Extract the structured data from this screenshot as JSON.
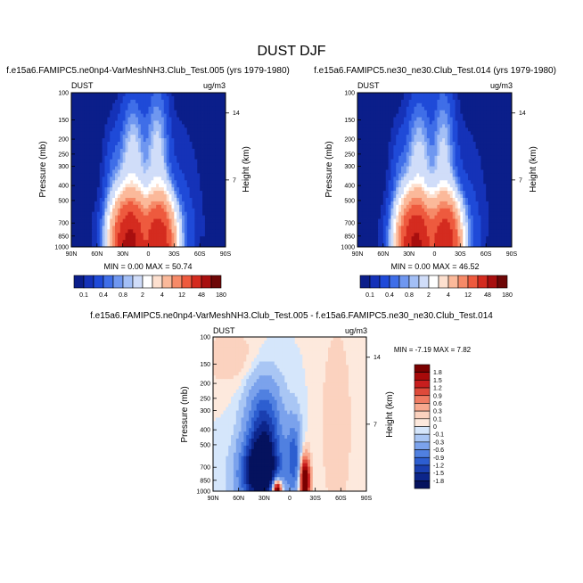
{
  "figure": {
    "title": "DUST DJF"
  },
  "chart_data": [
    {
      "type": "heatmap",
      "title": "f.e15a6.FAMIPC5.ne0np4-VarMeshNH3.Club_Test.005 (yrs 1979-1980)",
      "left_label": "DUST",
      "right_label": "ug/m3",
      "ylabel": "Pressure (mb)",
      "ylabel_right": "Height (km)",
      "x_ticks": [
        "90N",
        "60N",
        "30N",
        "0",
        "30S",
        "60S",
        "90S"
      ],
      "y_ticks": [
        "100",
        "150",
        "200",
        "250",
        "300",
        "400",
        "500",
        "700",
        "850",
        "1000"
      ],
      "y_ticks_right": [
        "14",
        "7"
      ],
      "xlim": [
        90,
        -90
      ],
      "ylim": [
        1000,
        100
      ],
      "stats": "MIN =  0.00  MAX = 50.74",
      "colorbar": {
        "labels": [
          "0.1",
          "0.4",
          "0.8",
          "2",
          "4",
          "12",
          "48",
          "180"
        ],
        "colors": [
          "#0b1e8a",
          "#1532b8",
          "#1f4ad8",
          "#3f6ee8",
          "#6f97f0",
          "#a3bff6",
          "#d0ddf9",
          "#ffffff",
          "#fde0cf",
          "#fbb99a",
          "#f68a68",
          "#ee5a3e",
          "#d42b1f",
          "#a80f0f",
          "#6e0707"
        ]
      }
    },
    {
      "type": "heatmap",
      "title": "f.e15a6.FAMIPC5.ne30_ne30.Club_Test.014 (yrs 1979-1980)",
      "left_label": "DUST",
      "right_label": "ug/m3",
      "ylabel": "Pressure (mb)",
      "ylabel_right": "Height (km)",
      "x_ticks": [
        "90N",
        "60N",
        "30N",
        "0",
        "30S",
        "60S",
        "90S"
      ],
      "y_ticks": [
        "100",
        "150",
        "200",
        "250",
        "300",
        "400",
        "500",
        "700",
        "850",
        "1000"
      ],
      "y_ticks_right": [
        "14",
        "7"
      ],
      "xlim": [
        90,
        -90
      ],
      "ylim": [
        1000,
        100
      ],
      "stats": "MIN =  0.00  MAX = 46.52",
      "colorbar": {
        "labels": [
          "0.1",
          "0.4",
          "0.8",
          "2",
          "4",
          "12",
          "48",
          "180"
        ],
        "colors": [
          "#0b1e8a",
          "#1532b8",
          "#1f4ad8",
          "#3f6ee8",
          "#6f97f0",
          "#a3bff6",
          "#d0ddf9",
          "#ffffff",
          "#fde0cf",
          "#fbb99a",
          "#f68a68",
          "#ee5a3e",
          "#d42b1f",
          "#a80f0f",
          "#6e0707"
        ]
      }
    },
    {
      "type": "heatmap",
      "title": "f.e15a6.FAMIPC5.ne0np4-VarMeshNH3.Club_Test.005 - f.e15a6.FAMIPC5.ne30_ne30.Club_Test.014",
      "left_label": "DUST",
      "right_label": "ug/m3",
      "ylabel": "Pressure (mb)",
      "ylabel_right": "Height (km)",
      "x_ticks": [
        "90N",
        "60N",
        "30N",
        "0",
        "30S",
        "60S",
        "90S"
      ],
      "y_ticks": [
        "100",
        "150",
        "200",
        "250",
        "300",
        "400",
        "500",
        "700",
        "850",
        "1000"
      ],
      "y_ticks_right": [
        "14",
        "7"
      ],
      "xlim": [
        90,
        -90
      ],
      "ylim": [
        1000,
        100
      ],
      "stats": "MIN = -7.19  MAX =  7.82",
      "colorbar": {
        "labels": [
          "1.8",
          "1.5",
          "1.2",
          "0.9",
          "0.6",
          "0.3",
          "0.1",
          "0",
          "-0.1",
          "-0.3",
          "-0.6",
          "-0.9",
          "-1.2",
          "-1.5",
          "-1.8"
        ],
        "colors": [
          "#7a0000",
          "#a80a0a",
          "#c81e1e",
          "#de4a3a",
          "#ef7b62",
          "#f7a98f",
          "#fbd2bf",
          "#fde9dd",
          "#d5e6fb",
          "#a9c6f4",
          "#7ba2ec",
          "#5080e0",
          "#2d5ed0",
          "#1a3fb0",
          "#0c258a",
          "#05125e"
        ]
      }
    }
  ]
}
